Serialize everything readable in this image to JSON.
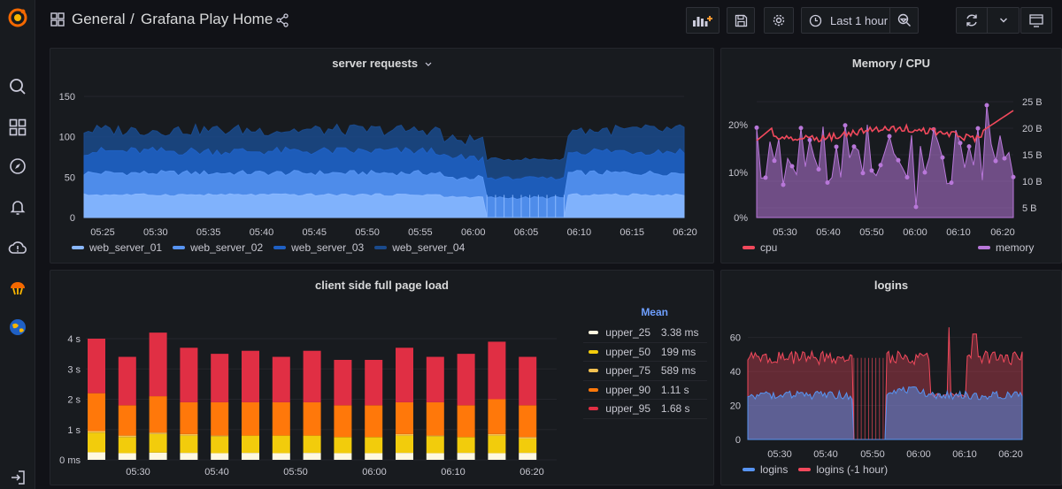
{
  "breadcrumb": {
    "folder": "General",
    "separator": "/",
    "dashboard": "Grafana Play Home"
  },
  "toolbar": {
    "time_range": "Last 1 hour"
  },
  "colors": {
    "ws1": "#8ab8ff",
    "ws2": "#5794f2",
    "ws3": "#1f60c4",
    "ws4": "#1a4a8c",
    "cpu": "#f2495c",
    "memory": "#b877d9",
    "upper_25": "#fff8e0",
    "upper_50": "#f2cc0c",
    "upper_75": "#f4c252",
    "upper_90": "#ff780a",
    "upper_95": "#e02f44",
    "logins": "#5794f2",
    "logins_prev": "#f2495c"
  },
  "panels": {
    "server_requests": {
      "title": "server requests",
      "legend": [
        "web_server_01",
        "web_server_02",
        "web_server_03",
        "web_server_04"
      ]
    },
    "memory_cpu": {
      "title": "Memory / CPU",
      "legend": [
        "cpu",
        "memory"
      ]
    },
    "page_load": {
      "title": "client side full page load",
      "legend_header": "Mean",
      "legend": [
        {
          "name": "upper_25",
          "value": "3.38 ms"
        },
        {
          "name": "upper_50",
          "value": "199 ms"
        },
        {
          "name": "upper_75",
          "value": "589 ms"
        },
        {
          "name": "upper_90",
          "value": "1.11 s"
        },
        {
          "name": "upper_95",
          "value": "1.68 s"
        }
      ]
    },
    "logins": {
      "title": "logins",
      "legend": [
        "logins",
        "logins (-1 hour)"
      ]
    }
  },
  "chart_data": [
    {
      "type": "area",
      "title": "server requests",
      "y_ticks": [
        "0",
        "50",
        "100",
        "150"
      ],
      "ylim": [
        0,
        150
      ],
      "x_ticks": [
        "05:25",
        "05:30",
        "05:35",
        "05:40",
        "05:45",
        "05:50",
        "05:55",
        "06:00",
        "06:05",
        "06:10",
        "06:15",
        "06:20"
      ],
      "series": [
        {
          "name": "web_server_01",
          "stacked_top_approx": 28
        },
        {
          "name": "web_server_02",
          "stacked_top_approx": 55
        },
        {
          "name": "web_server_03",
          "stacked_top_approx": 82
        },
        {
          "name": "web_server_04",
          "stacked_top_approx": 108
        }
      ]
    },
    {
      "type": "line",
      "title": "Memory / CPU",
      "y_left_ticks": [
        "0%",
        "10%",
        "20%"
      ],
      "y_right_ticks": [
        "5 B",
        "10 B",
        "15 B",
        "20 B",
        "25 B"
      ],
      "x_ticks": [
        "05:30",
        "05:40",
        "05:50",
        "06:00",
        "06:10",
        "06:20"
      ],
      "series": [
        {
          "name": "cpu",
          "axis": "left"
        },
        {
          "name": "memory",
          "axis": "right"
        }
      ]
    },
    {
      "type": "bar",
      "title": "client side full page load",
      "y_ticks": [
        "0 ms",
        "1 s",
        "2 s",
        "3 s",
        "4 s"
      ],
      "x_ticks": [
        "05:30",
        "05:40",
        "05:50",
        "06:00",
        "06:10",
        "06:20"
      ],
      "series": [
        {
          "name": "upper_25",
          "values": [
            0.25,
            0.22,
            0.24,
            0.23,
            0.22,
            0.23,
            0.22,
            0.23,
            0.22,
            0.22,
            0.23,
            0.22,
            0.23,
            0.22,
            0.23
          ]
        },
        {
          "name": "upper_50",
          "values": [
            0.9,
            0.75,
            0.85,
            0.8,
            0.78,
            0.8,
            0.8,
            0.8,
            0.75,
            0.75,
            0.8,
            0.78,
            0.75,
            0.8,
            0.7
          ]
        },
        {
          "name": "upper_75",
          "values": [
            0.95,
            0.8,
            0.9,
            0.85,
            0.8,
            0.8,
            0.8,
            0.8,
            0.75,
            0.75,
            0.85,
            0.8,
            0.75,
            0.85,
            0.75
          ]
        },
        {
          "name": "upper_90",
          "values": [
            2.2,
            1.8,
            2.1,
            1.9,
            1.9,
            1.9,
            1.9,
            1.9,
            1.8,
            1.8,
            1.9,
            1.9,
            1.8,
            2.0,
            1.8
          ]
        },
        {
          "name": "upper_95",
          "values": [
            4.0,
            3.4,
            4.2,
            3.7,
            3.5,
            3.6,
            3.4,
            3.6,
            3.3,
            3.3,
            3.7,
            3.4,
            3.5,
            3.9,
            3.4
          ]
        }
      ]
    },
    {
      "type": "area",
      "title": "logins",
      "y_ticks": [
        "0",
        "20",
        "40",
        "60"
      ],
      "ylim": [
        0,
        65
      ],
      "x_ticks": [
        "05:30",
        "05:40",
        "05:50",
        "06:00",
        "06:10",
        "06:20"
      ],
      "series": [
        {
          "name": "logins",
          "level_approx": 26
        },
        {
          "name": "logins (-1 hour)",
          "level_approx": 48
        }
      ]
    }
  ]
}
